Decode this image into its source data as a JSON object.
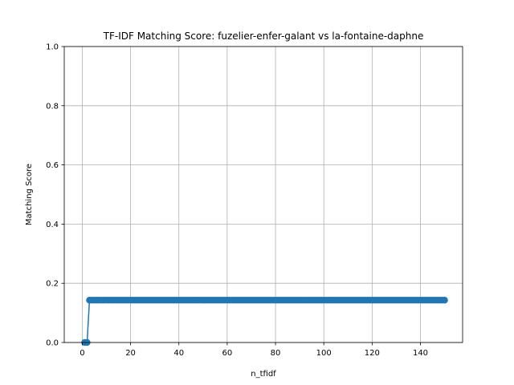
{
  "chart_data": {
    "type": "line",
    "title": "TF-IDF Matching Score: fuzelier-enfer-galant vs la-fontaine-daphne",
    "xlabel": "n_tfidf",
    "ylabel": "Matching Score",
    "xlim": [
      -7.45,
      157.45
    ],
    "ylim": [
      0.0,
      1.0
    ],
    "xticks": [
      0,
      20,
      40,
      60,
      80,
      100,
      120,
      140
    ],
    "yticks": [
      0.0,
      0.2,
      0.4,
      0.6,
      0.8,
      1.0
    ],
    "xtick_labels": [
      "0",
      "20",
      "40",
      "60",
      "80",
      "100",
      "120",
      "140"
    ],
    "ytick_labels": [
      "0.0",
      "0.2",
      "0.4",
      "0.6",
      "0.8",
      "1.0"
    ],
    "grid": true,
    "marker": "circle",
    "series": [
      {
        "color": "#1f77b4",
        "x_range": [
          1,
          150
        ],
        "values": [
          0.0,
          0.0,
          0.143,
          0.143,
          0.143,
          0.143,
          0.143,
          0.143,
          0.143,
          0.143,
          0.143,
          0.143,
          0.143,
          0.143,
          0.143,
          0.143,
          0.143,
          0.143,
          0.143,
          0.143,
          0.143,
          0.143,
          0.143,
          0.143,
          0.143,
          0.143,
          0.143,
          0.143,
          0.143,
          0.143,
          0.143,
          0.143,
          0.143,
          0.143,
          0.143,
          0.143,
          0.143,
          0.143,
          0.143,
          0.143,
          0.143,
          0.143,
          0.143,
          0.143,
          0.143,
          0.143,
          0.143,
          0.143,
          0.143,
          0.143,
          0.143,
          0.143,
          0.143,
          0.143,
          0.143,
          0.143,
          0.143,
          0.143,
          0.143,
          0.143,
          0.143,
          0.143,
          0.143,
          0.143,
          0.143,
          0.143,
          0.143,
          0.143,
          0.143,
          0.143,
          0.143,
          0.143,
          0.143,
          0.143,
          0.143,
          0.143,
          0.143,
          0.143,
          0.143,
          0.143,
          0.143,
          0.143,
          0.143,
          0.143,
          0.143,
          0.143,
          0.143,
          0.143,
          0.143,
          0.143,
          0.143,
          0.143,
          0.143,
          0.143,
          0.143,
          0.143,
          0.143,
          0.143,
          0.143,
          0.143,
          0.143,
          0.143,
          0.143,
          0.143,
          0.143,
          0.143,
          0.143,
          0.143,
          0.143,
          0.143,
          0.143,
          0.143,
          0.143,
          0.143,
          0.143,
          0.143,
          0.143,
          0.143,
          0.143,
          0.143,
          0.143,
          0.143,
          0.143,
          0.143,
          0.143,
          0.143,
          0.143,
          0.143,
          0.143,
          0.143,
          0.143,
          0.143,
          0.143,
          0.143,
          0.143,
          0.143,
          0.143,
          0.143,
          0.143,
          0.143,
          0.143,
          0.143,
          0.143,
          0.143,
          0.143,
          0.143,
          0.143,
          0.143,
          0.143,
          0.143
        ]
      }
    ]
  }
}
